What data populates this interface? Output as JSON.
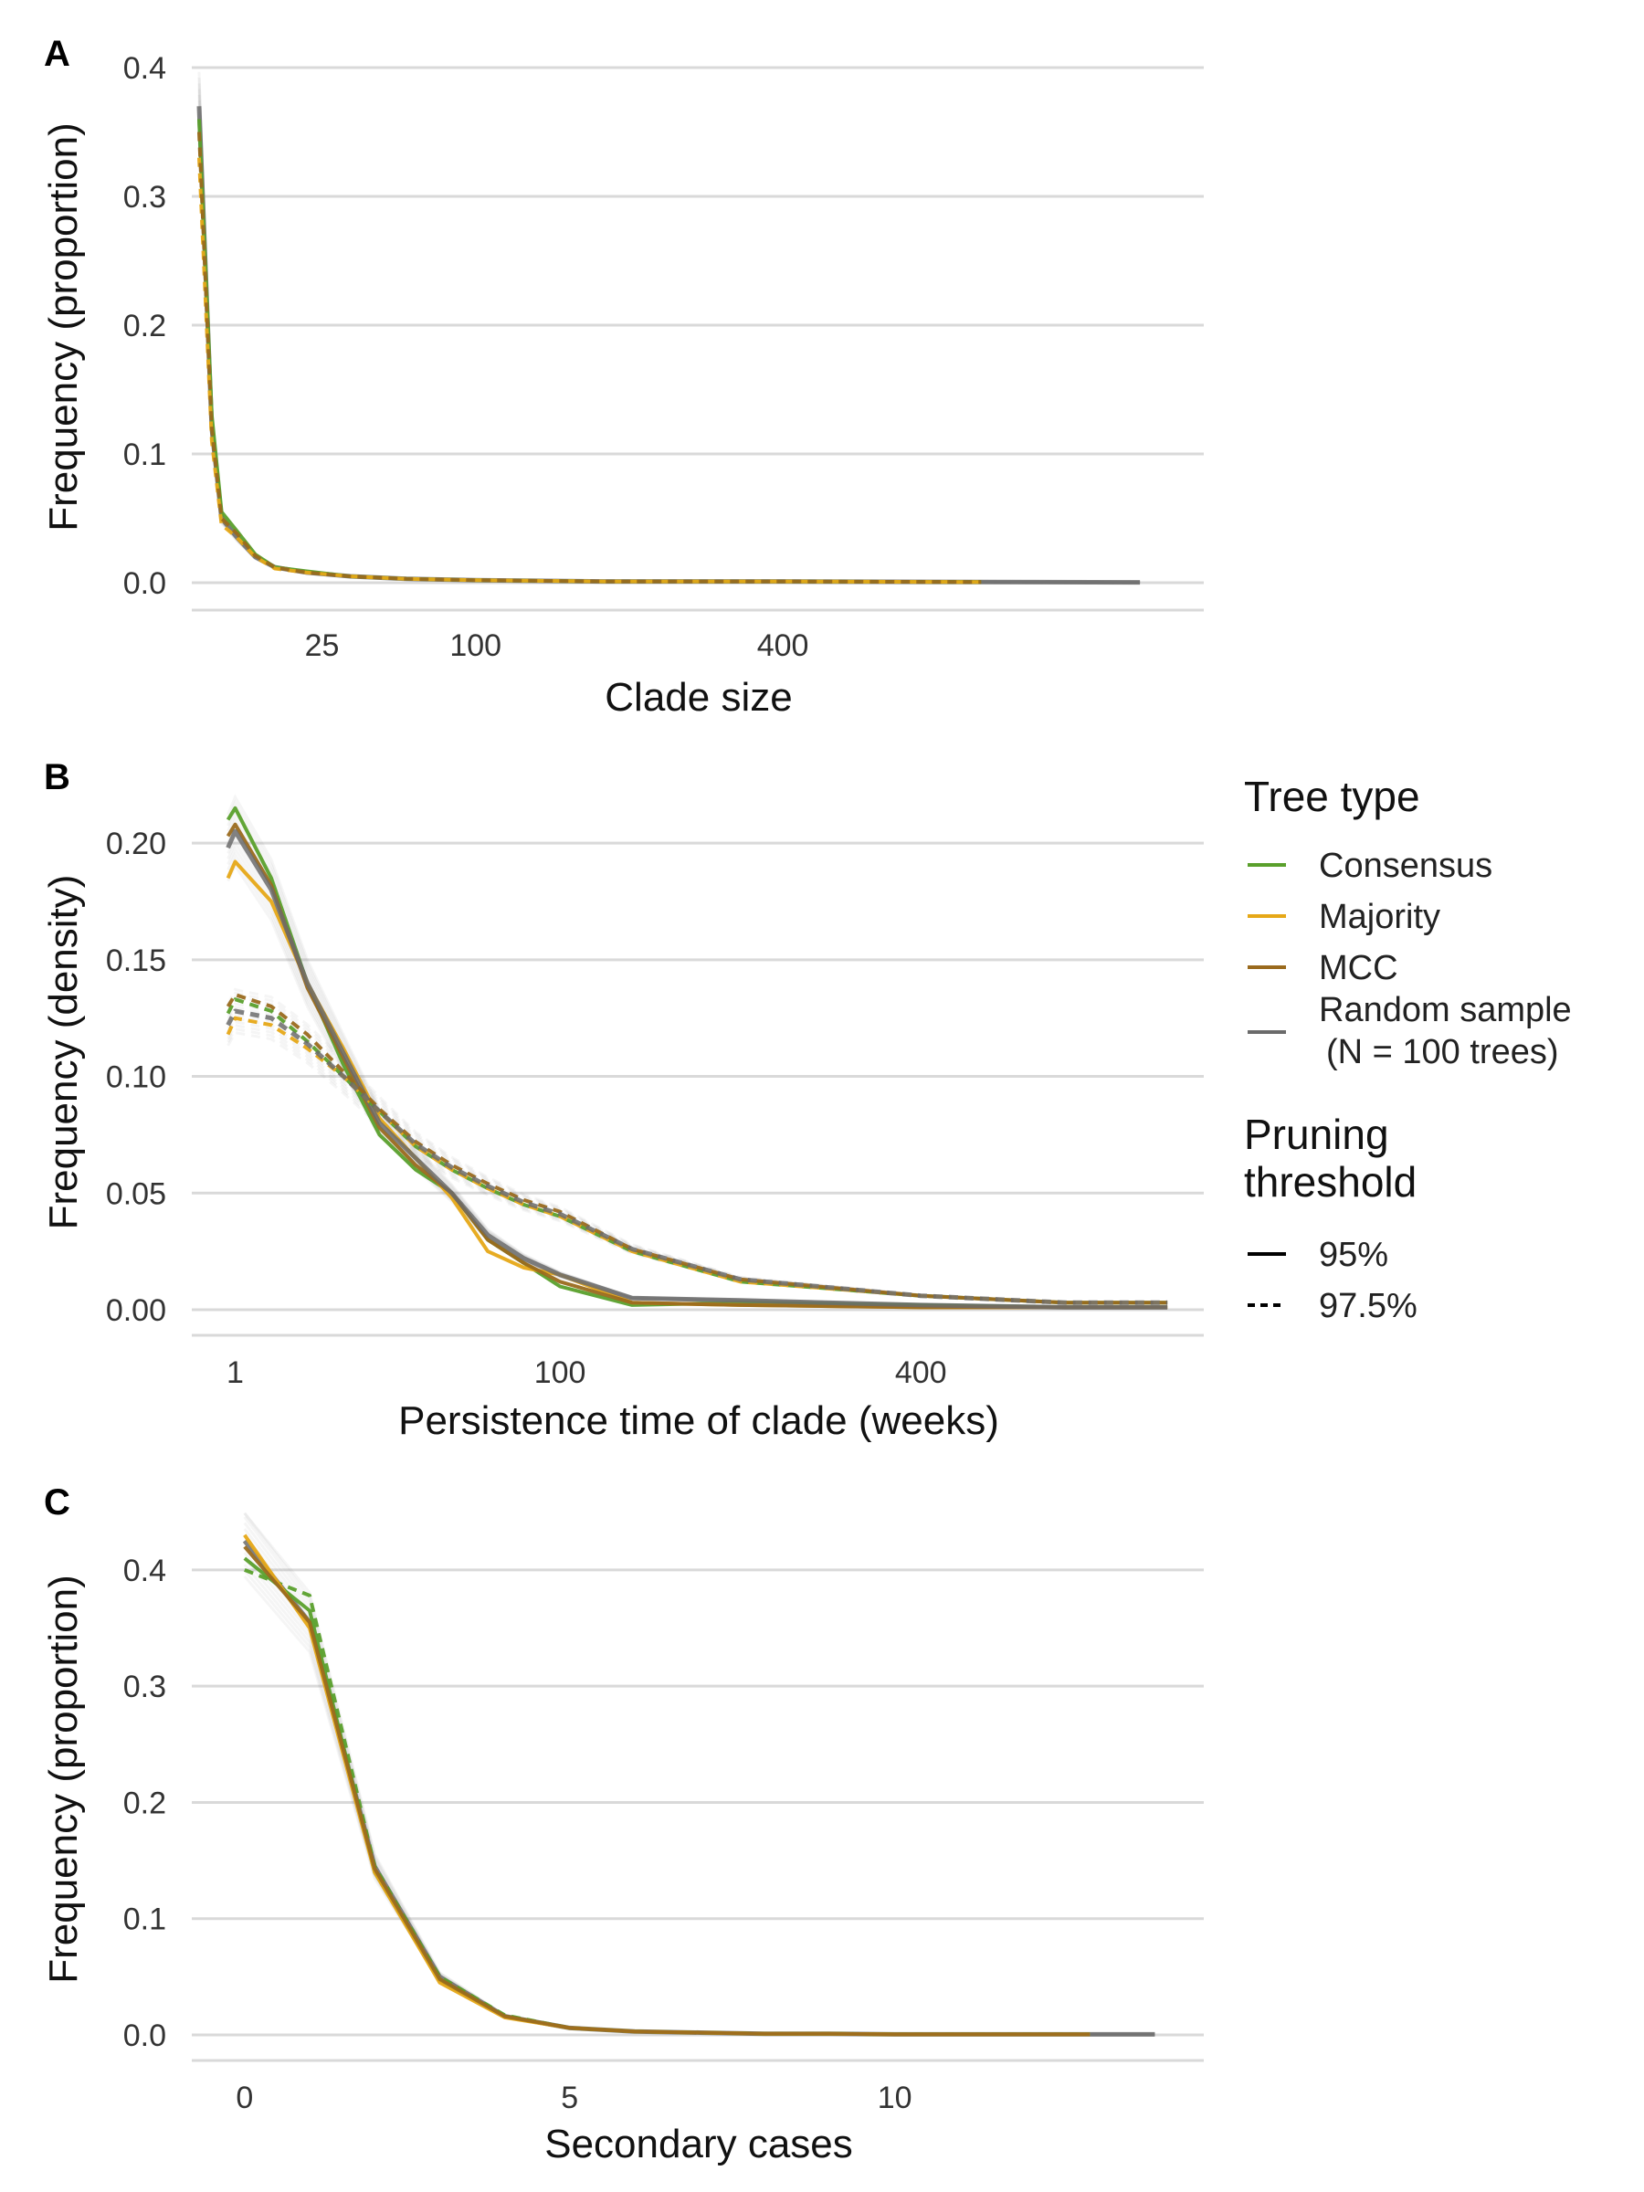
{
  "colors": {
    "consensus": "#5aa02c",
    "majority": "#e6a817",
    "mcc": "#9a6a1d",
    "random": "#6b6b6b",
    "grid": "#d9d9d9"
  },
  "legend": {
    "tree_type_title": "Tree type",
    "tree_types": [
      "Consensus",
      "Majority",
      "MCC",
      "Random sample"
    ],
    "random_note": "(N = 100 trees)",
    "pruning_title_line1": "Pruning",
    "pruning_title_line2": "threshold",
    "pruning": [
      "95%",
      "97.5%"
    ]
  },
  "chart_data": [
    {
      "panel": "A",
      "type": "line",
      "xlabel": "Clade size",
      "ylabel": "Frequency (proportion)",
      "x_scale": "sqrt",
      "xlim": [
        1,
        1100
      ],
      "ylim": [
        0,
        0.4
      ],
      "x_ticks": [
        25,
        100,
        400
      ],
      "y_ticks": [
        0.0,
        0.1,
        0.2,
        0.3,
        0.4
      ],
      "y_tick_labels": [
        "0.0",
        "0.1",
        "0.2",
        "0.3",
        "0.4"
      ],
      "grid": "horizontal",
      "series": [
        {
          "group": "Random sample",
          "threshold": "95%",
          "x": [
            1,
            2,
            3,
            5,
            8,
            12,
            20,
            35,
            60,
            100,
            200,
            400,
            700,
            1000
          ],
          "y": [
            0.37,
            0.12,
            0.05,
            0.035,
            0.02,
            0.012,
            0.008,
            0.005,
            0.003,
            0.002,
            0.001,
            0.001,
            0.0005,
            0.0003
          ]
        },
        {
          "group": "Consensus",
          "threshold": "95%",
          "x": [
            1,
            2,
            3,
            5,
            8,
            12,
            20,
            35,
            60,
            100,
            200,
            400,
            700
          ],
          "y": [
            0.36,
            0.13,
            0.055,
            0.04,
            0.022,
            0.012,
            0.009,
            0.005,
            0.003,
            0.002,
            0.001,
            0.001,
            0.0005
          ]
        },
        {
          "group": "Majority",
          "threshold": "97.5%",
          "x": [
            1,
            2,
            3,
            5,
            8,
            12,
            20,
            35,
            60,
            100,
            200,
            400,
            700
          ],
          "y": [
            0.33,
            0.11,
            0.045,
            0.035,
            0.02,
            0.011,
            0.008,
            0.005,
            0.003,
            0.002,
            0.001,
            0.001,
            0.0005
          ]
        },
        {
          "group": "MCC",
          "threshold": "97.5%",
          "x": [
            1,
            2,
            3,
            5,
            8,
            12,
            20,
            35,
            60,
            100,
            200,
            400,
            700
          ],
          "y": [
            0.35,
            0.12,
            0.05,
            0.038,
            0.021,
            0.012,
            0.008,
            0.005,
            0.003,
            0.002,
            0.001,
            0.001,
            0.0005
          ]
        }
      ]
    },
    {
      "panel": "B",
      "type": "line",
      "xlabel": "Persistence time of clade (weeks)",
      "ylabel": "Frequency (density)",
      "x_scale": "sqrt",
      "xlim": [
        0,
        750
      ],
      "ylim": [
        0,
        0.22
      ],
      "x_ticks": [
        1,
        100,
        400
      ],
      "y_ticks": [
        0.0,
        0.05,
        0.1,
        0.15,
        0.2
      ],
      "y_tick_labels": [
        "0.00",
        "0.05",
        "0.10",
        "0.15",
        "0.20"
      ],
      "grid": "horizontal",
      "series": [
        {
          "group": "Consensus",
          "threshold": "95%",
          "x": [
            0.64,
            1,
            4,
            9,
            16,
            25,
            36,
            49,
            64,
            81,
            100,
            144,
            225,
            400,
            576,
            720
          ],
          "y": [
            0.21,
            0.215,
            0.185,
            0.14,
            0.105,
            0.075,
            0.06,
            0.05,
            0.03,
            0.02,
            0.01,
            0.002,
            0.003,
            0.002,
            0.001,
            0.001
          ]
        },
        {
          "group": "Majority",
          "threshold": "95%",
          "x": [
            0.64,
            1,
            4,
            9,
            16,
            25,
            36,
            49,
            64,
            81,
            100,
            144,
            225,
            400,
            576,
            720
          ],
          "y": [
            0.185,
            0.192,
            0.175,
            0.14,
            0.112,
            0.082,
            0.065,
            0.048,
            0.025,
            0.018,
            0.015,
            0.003,
            0.002,
            0.001,
            0.001,
            0.001
          ]
        },
        {
          "group": "MCC",
          "threshold": "95%",
          "x": [
            0.64,
            1,
            4,
            9,
            16,
            25,
            36,
            49,
            64,
            81,
            100,
            144,
            225,
            400,
            576,
            720
          ],
          "y": [
            0.203,
            0.208,
            0.182,
            0.138,
            0.108,
            0.078,
            0.062,
            0.05,
            0.03,
            0.02,
            0.012,
            0.003,
            0.002,
            0.001,
            0.001,
            0.001
          ]
        },
        {
          "group": "Random sample",
          "threshold": "95%",
          "x": [
            0.64,
            1,
            4,
            9,
            16,
            25,
            36,
            49,
            64,
            81,
            100,
            144,
            225,
            400,
            576,
            720
          ],
          "y": [
            0.198,
            0.205,
            0.18,
            0.14,
            0.11,
            0.08,
            0.065,
            0.05,
            0.032,
            0.022,
            0.015,
            0.005,
            0.004,
            0.002,
            0.001,
            0.001
          ]
        },
        {
          "group": "Consensus",
          "threshold": "97.5%",
          "x": [
            0.64,
            1,
            4,
            9,
            16,
            25,
            36,
            49,
            64,
            81,
            100,
            144,
            225,
            400,
            576,
            720
          ],
          "y": [
            0.127,
            0.133,
            0.128,
            0.115,
            0.1,
            0.085,
            0.07,
            0.06,
            0.052,
            0.045,
            0.04,
            0.025,
            0.012,
            0.006,
            0.003,
            0.003
          ]
        },
        {
          "group": "Majority",
          "threshold": "97.5%",
          "x": [
            0.64,
            1,
            4,
            9,
            16,
            25,
            36,
            49,
            64,
            81,
            100,
            144,
            225,
            400,
            576,
            720
          ],
          "y": [
            0.118,
            0.125,
            0.122,
            0.112,
            0.1,
            0.085,
            0.07,
            0.06,
            0.052,
            0.045,
            0.04,
            0.025,
            0.012,
            0.006,
            0.003,
            0.003
          ]
        },
        {
          "group": "MCC",
          "threshold": "97.5%",
          "x": [
            0.64,
            1,
            4,
            9,
            16,
            25,
            36,
            49,
            64,
            81,
            100,
            144,
            225,
            400,
            576,
            720
          ],
          "y": [
            0.13,
            0.135,
            0.13,
            0.118,
            0.102,
            0.086,
            0.072,
            0.062,
            0.054,
            0.047,
            0.042,
            0.026,
            0.013,
            0.006,
            0.003,
            0.003
          ]
        },
        {
          "group": "Random sample",
          "threshold": "97.5%",
          "x": [
            0.64,
            1,
            4,
            9,
            16,
            25,
            36,
            49,
            64,
            81,
            100,
            144,
            225,
            400,
            576,
            720
          ],
          "y": [
            0.122,
            0.128,
            0.125,
            0.114,
            0.1,
            0.085,
            0.071,
            0.061,
            0.053,
            0.046,
            0.041,
            0.026,
            0.013,
            0.006,
            0.003,
            0.003
          ]
        }
      ]
    },
    {
      "panel": "C",
      "type": "line",
      "xlabel": "Secondary cases",
      "ylabel": "Frequency (proportion)",
      "x_scale": "linear",
      "xlim": [
        -0.7,
        14.5
      ],
      "ylim": [
        0,
        0.44
      ],
      "x_ticks": [
        0,
        5,
        10
      ],
      "y_ticks": [
        0.0,
        0.1,
        0.2,
        0.3,
        0.4
      ],
      "y_tick_labels": [
        "0.0",
        "0.1",
        "0.2",
        "0.3",
        "0.4"
      ],
      "grid": "horizontal",
      "series": [
        {
          "group": "Random sample",
          "threshold": "95%",
          "x": [
            0,
            1,
            2,
            3,
            4,
            5,
            6,
            7,
            8,
            9,
            10,
            11,
            12,
            13,
            14
          ],
          "y": [
            0.425,
            0.355,
            0.145,
            0.05,
            0.016,
            0.006,
            0.003,
            0.002,
            0.001,
            0.001,
            0.0005,
            0.0005,
            0.0005,
            0.0005,
            0.0005
          ]
        },
        {
          "group": "Consensus",
          "threshold": "95%",
          "x": [
            0,
            1,
            2,
            3,
            4,
            5,
            6,
            7,
            8,
            9,
            10,
            11,
            12,
            13
          ],
          "y": [
            0.41,
            0.365,
            0.14,
            0.047,
            0.016,
            0.006,
            0.003,
            0.002,
            0.001,
            0.001,
            0.0005,
            0.0005,
            0.0005,
            0.0005
          ]
        },
        {
          "group": "Consensus",
          "threshold": "97.5%",
          "x": [
            0,
            1,
            2,
            3,
            4,
            5,
            6,
            7,
            8,
            9,
            10,
            11,
            12,
            13
          ],
          "y": [
            0.4,
            0.378,
            0.145,
            0.05,
            0.017,
            0.006,
            0.003,
            0.002,
            0.001,
            0.001,
            0.0005,
            0.0005,
            0.0005,
            0.0005
          ]
        },
        {
          "group": "Majority",
          "threshold": "95%",
          "x": [
            0,
            1,
            2,
            3,
            4,
            5,
            6,
            7,
            8,
            9,
            10,
            11,
            12,
            13
          ],
          "y": [
            0.43,
            0.35,
            0.14,
            0.045,
            0.015,
            0.006,
            0.003,
            0.002,
            0.001,
            0.001,
            0.0005,
            0.0005,
            0.0005,
            0.0005
          ]
        },
        {
          "group": "MCC",
          "threshold": "95%",
          "x": [
            0,
            1,
            2,
            3,
            4,
            5,
            6,
            7,
            8,
            9,
            10,
            11,
            12,
            13
          ],
          "y": [
            0.42,
            0.355,
            0.143,
            0.048,
            0.016,
            0.006,
            0.003,
            0.002,
            0.001,
            0.001,
            0.0005,
            0.0005,
            0.0005,
            0.0005
          ]
        }
      ]
    }
  ]
}
